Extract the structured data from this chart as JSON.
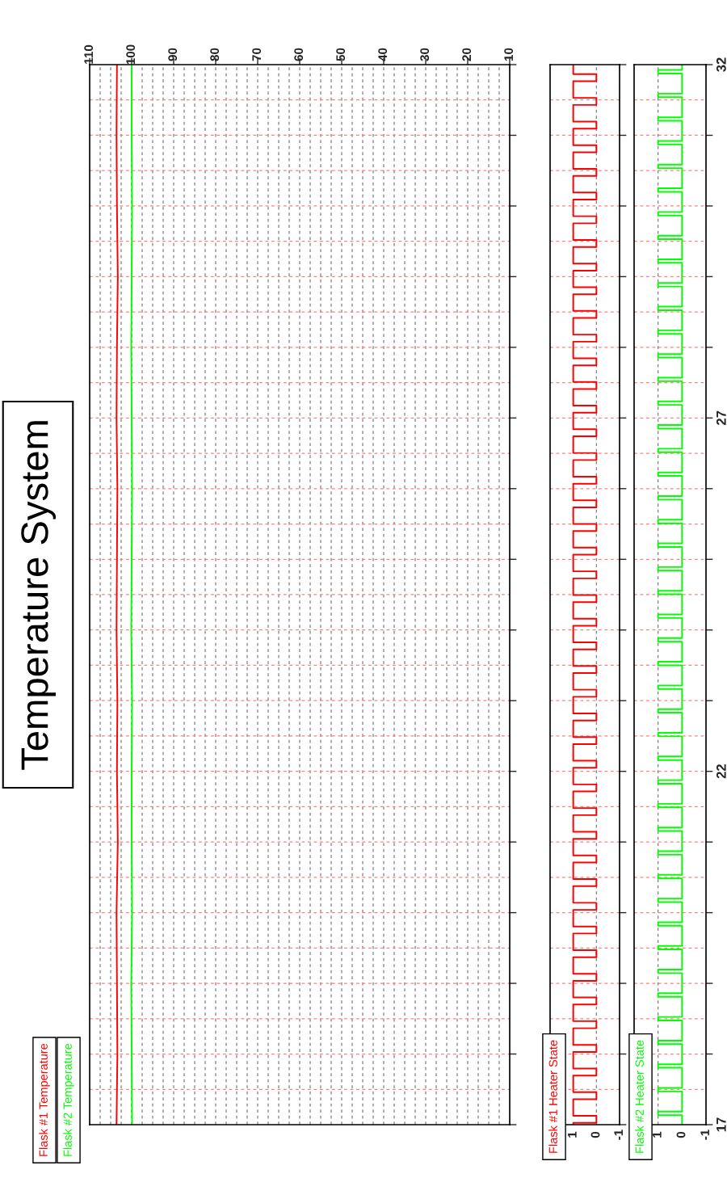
{
  "chart_data": [
    {
      "type": "line",
      "orientation": "horizontal",
      "title": "Temperature System",
      "legend": "bottom left",
      "tick_labels": "x",
      "xlim": [
        110,
        10
      ],
      "xticks": [
        110,
        100,
        90,
        80,
        70,
        60,
        50,
        40,
        30,
        20,
        10
      ],
      "ylim": [
        17,
        32
      ],
      "yticks": [
        17,
        {
          "value": 18,
          "label": null
        },
        {
          "value": 19,
          "label": null
        },
        {
          "value": 20,
          "label": null
        },
        {
          "value": 21,
          "label": null
        },
        22,
        {
          "value": 23,
          "label": null
        },
        {
          "value": 24,
          "label": null
        },
        {
          "value": 25,
          "label": null
        },
        {
          "value": 26,
          "label": null
        },
        27,
        {
          "value": 28,
          "label": null
        },
        {
          "value": 29,
          "label": null
        },
        {
          "value": 30,
          "label": null
        },
        {
          "value": 31,
          "label": null
        },
        32
      ],
      "series": [
        {
          "name": "Flask #1 Temperature",
          "color": "#ff0000",
          "x": [
            17,
            18,
            19,
            20,
            21,
            22,
            23,
            24,
            25,
            26,
            27,
            28,
            29,
            30,
            31,
            32
          ],
          "values": [
            103.6,
            103.4,
            103.5,
            103.6,
            103.3,
            103.5,
            103.4,
            103.6,
            103.5,
            103.4,
            103.6,
            103.5,
            103.3,
            103.5,
            103.6,
            103.5
          ]
        },
        {
          "name": "Flask #2 Temperature",
          "color": "#00ff00",
          "x": [
            17,
            18,
            19,
            20,
            21,
            22,
            23,
            24,
            25,
            26,
            27,
            28,
            29,
            30,
            31,
            32
          ],
          "values": [
            99.9,
            100.0,
            100.1,
            99.9,
            100.0,
            100.0,
            99.9,
            100.1,
            100.0,
            99.9,
            100.0,
            100.1,
            100.0,
            99.9,
            100.0,
            100.0
          ]
        }
      ],
      "ref_lines": [
        {
          "axis": "x",
          "value": 107.5,
          "color": "#808080",
          "line_style": "dashed"
        },
        {
          "axis": "x",
          "value": 105,
          "color": "#808080",
          "line_style": "dashed"
        },
        {
          "axis": "x",
          "value": 102.5,
          "color": "#808080",
          "line_style": "dashed"
        },
        {
          "axis": "x",
          "value": 100,
          "color": "#808080",
          "line_style": "dashed"
        },
        {
          "axis": "x",
          "value": 97.5,
          "color": "#808080",
          "line_style": "dashed"
        },
        {
          "axis": "x",
          "value": 95,
          "color": "#808080",
          "line_style": "dashed"
        },
        {
          "axis": "x",
          "value": 92.5,
          "color": "#808080",
          "line_style": "dashed"
        },
        {
          "axis": "x",
          "value": 90,
          "color": "#808080",
          "line_style": "dashed"
        },
        {
          "axis": "x",
          "value": 87.5,
          "color": "#808080",
          "line_style": "dashed"
        },
        {
          "axis": "x",
          "value": 85,
          "color": "#808080",
          "line_style": "dashed"
        },
        {
          "axis": "x",
          "value": 82.5,
          "color": "#808080",
          "line_style": "dashed"
        },
        {
          "axis": "x",
          "value": 80,
          "color": "#808080",
          "line_style": "dashed"
        },
        {
          "axis": "x",
          "value": 77.5,
          "color": "#808080",
          "line_style": "dashed"
        },
        {
          "axis": "x",
          "value": 75,
          "color": "#808080",
          "line_style": "dashed"
        },
        {
          "axis": "x",
          "value": 72.5,
          "color": "#808080",
          "line_style": "dashed"
        },
        {
          "axis": "x",
          "value": 70,
          "color": "#808080",
          "line_style": "dashed"
        },
        {
          "axis": "x",
          "value": 67.5,
          "color": "#808080",
          "line_style": "dashed"
        },
        {
          "axis": "x",
          "value": 65,
          "color": "#808080",
          "line_style": "dashed"
        },
        {
          "axis": "x",
          "value": 62.5,
          "color": "#808080",
          "line_style": "dashed"
        },
        {
          "axis": "x",
          "value": 60,
          "color": "#808080",
          "line_style": "dashed"
        },
        {
          "axis": "x",
          "value": 57.5,
          "color": "#808080",
          "line_style": "dashed"
        },
        {
          "axis": "x",
          "value": 55,
          "color": "#808080",
          "line_style": "dashed"
        },
        {
          "axis": "x",
          "value": 52.5,
          "color": "#808080",
          "line_style": "dashed"
        },
        {
          "axis": "x",
          "value": 50,
          "color": "#808080",
          "line_style": "dashed"
        },
        {
          "axis": "x",
          "value": 47.5,
          "color": "#808080",
          "line_style": "dashed"
        },
        {
          "axis": "x",
          "value": 45,
          "color": "#808080",
          "line_style": "dashed"
        },
        {
          "axis": "x",
          "value": 42.5,
          "color": "#808080",
          "line_style": "dashed"
        },
        {
          "axis": "x",
          "value": 40,
          "color": "#808080",
          "line_style": "dashed"
        },
        {
          "axis": "x",
          "value": 37.5,
          "color": "#808080",
          "line_style": "dashed"
        },
        {
          "axis": "x",
          "value": 35,
          "color": "#808080",
          "line_style": "dashed"
        },
        {
          "axis": "x",
          "value": 32.5,
          "color": "#808080",
          "line_style": "dashed"
        },
        {
          "axis": "x",
          "value": 30,
          "color": "#808080",
          "line_style": "dashed"
        },
        {
          "axis": "x",
          "value": 27.5,
          "color": "#808080",
          "line_style": "dashed"
        },
        {
          "axis": "x",
          "value": 25,
          "color": "#808080",
          "line_style": "dashed"
        },
        {
          "axis": "x",
          "value": 22.5,
          "color": "#808080",
          "line_style": "dashed"
        },
        {
          "axis": "x",
          "value": 20,
          "color": "#808080",
          "line_style": "dashed"
        },
        {
          "axis": "x",
          "value": 17.5,
          "color": "#808080",
          "line_style": "dashed"
        },
        {
          "axis": "x",
          "value": 15,
          "color": "#808080",
          "line_style": "dashed"
        },
        {
          "axis": "x",
          "value": 12.5,
          "color": "#808080",
          "line_style": "dashed"
        },
        {
          "axis": "y",
          "value": 17.5,
          "color": "#ff7f7f",
          "line_style": "dashed"
        },
        {
          "axis": "y",
          "value": 18,
          "color": "#ff7f7f",
          "line_style": "dashed"
        },
        {
          "axis": "y",
          "value": 18.5,
          "color": "#ff7f7f",
          "line_style": "dashed"
        },
        {
          "axis": "y",
          "value": 19,
          "color": "#ff7f7f",
          "line_style": "dashed"
        },
        {
          "axis": "y",
          "value": 19.5,
          "color": "#ff7f7f",
          "line_style": "dashed"
        },
        {
          "axis": "y",
          "value": 20,
          "color": "#ff7f7f",
          "line_style": "dashed"
        },
        {
          "axis": "y",
          "value": 20.5,
          "color": "#ff7f7f",
          "line_style": "dashed"
        },
        {
          "axis": "y",
          "value": 21,
          "color": "#ff7f7f",
          "line_style": "dashed"
        },
        {
          "axis": "y",
          "value": 21.5,
          "color": "#ff7f7f",
          "line_style": "dashed"
        },
        {
          "axis": "y",
          "value": 22,
          "color": "#ff7f7f",
          "line_style": "dashed"
        },
        {
          "axis": "y",
          "value": 22.5,
          "color": "#ff7f7f",
          "line_style": "dashed"
        },
        {
          "axis": "y",
          "value": 23,
          "color": "#ff7f7f",
          "line_style": "dashed"
        },
        {
          "axis": "y",
          "value": 23.5,
          "color": "#ff7f7f",
          "line_style": "dashed"
        },
        {
          "axis": "y",
          "value": 24,
          "color": "#ff7f7f",
          "line_style": "dashed"
        },
        {
          "axis": "y",
          "value": 24.5,
          "color": "#ff7f7f",
          "line_style": "dashed"
        },
        {
          "axis": "y",
          "value": 25,
          "color": "#ff7f7f",
          "line_style": "dashed"
        },
        {
          "axis": "y",
          "value": 25.5,
          "color": "#ff7f7f",
          "line_style": "dashed"
        },
        {
          "axis": "y",
          "value": 26,
          "color": "#ff7f7f",
          "line_style": "dashed"
        },
        {
          "axis": "y",
          "value": 26.5,
          "color": "#ff7f7f",
          "line_style": "dashed"
        },
        {
          "axis": "y",
          "value": 27,
          "color": "#ff7f7f",
          "line_style": "dashed"
        },
        {
          "axis": "y",
          "value": 27.5,
          "color": "#ff7f7f",
          "line_style": "dashed"
        },
        {
          "axis": "y",
          "value": 28,
          "color": "#ff7f7f",
          "line_style": "dashed"
        },
        {
          "axis": "y",
          "value": 28.5,
          "color": "#ff7f7f",
          "line_style": "dashed"
        },
        {
          "axis": "y",
          "value": 29,
          "color": "#ff7f7f",
          "line_style": "dashed"
        },
        {
          "axis": "y",
          "value": 29.5,
          "color": "#ff7f7f",
          "line_style": "dashed"
        },
        {
          "axis": "y",
          "value": 30,
          "color": "#ff7f7f",
          "line_style": "dashed"
        },
        {
          "axis": "y",
          "value": 30.5,
          "color": "#ff7f7f",
          "line_style": "dashed"
        },
        {
          "axis": "y",
          "value": 31,
          "color": "#ff7f7f",
          "line_style": "dashed"
        },
        {
          "axis": "y",
          "value": 31.5,
          "color": "#ff7f7f",
          "line_style": "dashed"
        }
      ]
    },
    {
      "type": "step",
      "orientation": "horizontal",
      "title": "Flask #1 Heater State",
      "tick_labels": "x",
      "xlim": [
        2,
        -1
      ],
      "xticks": [
        1,
        0,
        -1
      ],
      "ylim": [
        17,
        32
      ],
      "yticks": [
        17,
        {
          "value": 18,
          "label": null
        },
        {
          "value": 19,
          "label": null
        },
        {
          "value": 20,
          "label": null
        },
        {
          "value": 21,
          "label": null
        },
        22,
        {
          "value": 23,
          "label": null
        },
        {
          "value": 24,
          "label": null
        },
        {
          "value": 25,
          "label": null
        },
        {
          "value": 26,
          "label": null
        },
        27,
        {
          "value": 28,
          "label": null
        },
        {
          "value": 29,
          "label": null
        },
        {
          "value": 30,
          "label": null
        },
        {
          "value": 31,
          "label": null
        },
        32
      ],
      "series": [
        {
          "color": "#ff0000",
          "x": [
            17,
            17.025,
            17.125,
            17.36,
            17.46,
            17.695,
            17.795,
            18.03,
            18.13,
            18.365,
            18.465,
            18.7,
            18.8,
            19.035,
            19.135,
            19.37,
            19.47,
            19.705,
            19.805,
            20.04,
            20.14,
            20.375,
            20.475,
            20.71,
            20.81,
            21.045,
            21.145,
            21.38,
            21.48,
            21.715,
            21.815,
            22.05,
            22.15,
            22.385,
            22.485,
            22.72,
            22.82,
            23.055,
            23.155,
            23.39,
            23.49,
            23.725,
            23.825,
            24.06,
            24.16,
            24.395,
            24.495,
            24.73,
            24.83,
            25.065,
            25.165,
            25.4,
            25.5,
            25.735,
            25.835,
            26.07,
            26.17,
            26.405,
            26.505,
            26.74,
            26.84,
            27.075,
            27.175,
            27.41,
            27.51,
            27.745,
            27.845,
            28.08,
            28.18,
            28.415,
            28.515,
            28.75,
            28.85,
            29.085,
            29.185,
            29.42,
            29.52,
            29.755,
            29.855,
            30.09,
            30.19,
            30.425,
            30.525,
            30.76,
            30.86,
            31.095,
            31.195,
            31.43,
            31.53,
            31.765,
            31.865,
            32
          ],
          "values": [
            1,
            0,
            1,
            0,
            1,
            0,
            1,
            0,
            1,
            0,
            1,
            0,
            1,
            0,
            1,
            0,
            1,
            0,
            1,
            0,
            1,
            0,
            1,
            0,
            1,
            0,
            1,
            0,
            1,
            0,
            1,
            0,
            1,
            0,
            1,
            0,
            1,
            0,
            1,
            0,
            1,
            0,
            1,
            0,
            1,
            0,
            1,
            0,
            1,
            0,
            1,
            0,
            1,
            0,
            1,
            0,
            1,
            0,
            1,
            0,
            1,
            0,
            1,
            0,
            1,
            0,
            1,
            0,
            1,
            0,
            1,
            0,
            1,
            0,
            1,
            0,
            1,
            0,
            1,
            0,
            1,
            0,
            1,
            0,
            1,
            0,
            1,
            0,
            1,
            0,
            1,
            1
          ]
        }
      ],
      "ref_lines": [
        {
          "axis": "x",
          "value": 0,
          "color": "#808080",
          "line_style": "dashed"
        },
        {
          "axis": "y",
          "value": 17.5,
          "color": "#ff7f7f",
          "line_style": "dashed"
        },
        {
          "axis": "y",
          "value": 18,
          "color": "#ff7f7f",
          "line_style": "dashed"
        },
        {
          "axis": "y",
          "value": 18.5,
          "color": "#ff7f7f",
          "line_style": "dashed"
        },
        {
          "axis": "y",
          "value": 19,
          "color": "#ff7f7f",
          "line_style": "dashed"
        },
        {
          "axis": "y",
          "value": 19.5,
          "color": "#ff7f7f",
          "line_style": "dashed"
        },
        {
          "axis": "y",
          "value": 20,
          "color": "#ff7f7f",
          "line_style": "dashed"
        },
        {
          "axis": "y",
          "value": 20.5,
          "color": "#ff7f7f",
          "line_style": "dashed"
        },
        {
          "axis": "y",
          "value": 21,
          "color": "#ff7f7f",
          "line_style": "dashed"
        },
        {
          "axis": "y",
          "value": 21.5,
          "color": "#ff7f7f",
          "line_style": "dashed"
        },
        {
          "axis": "y",
          "value": 22,
          "color": "#ff7f7f",
          "line_style": "dashed"
        },
        {
          "axis": "y",
          "value": 22.5,
          "color": "#ff7f7f",
          "line_style": "dashed"
        },
        {
          "axis": "y",
          "value": 23,
          "color": "#ff7f7f",
          "line_style": "dashed"
        },
        {
          "axis": "y",
          "value": 23.5,
          "color": "#ff7f7f",
          "line_style": "dashed"
        },
        {
          "axis": "y",
          "value": 24,
          "color": "#ff7f7f",
          "line_style": "dashed"
        },
        {
          "axis": "y",
          "value": 24.5,
          "color": "#ff7f7f",
          "line_style": "dashed"
        },
        {
          "axis": "y",
          "value": 25,
          "color": "#ff7f7f",
          "line_style": "dashed"
        },
        {
          "axis": "y",
          "value": 25.5,
          "color": "#ff7f7f",
          "line_style": "dashed"
        },
        {
          "axis": "y",
          "value": 26,
          "color": "#ff7f7f",
          "line_style": "dashed"
        },
        {
          "axis": "y",
          "value": 26.5,
          "color": "#ff7f7f",
          "line_style": "dashed"
        },
        {
          "axis": "y",
          "value": 27,
          "color": "#ff7f7f",
          "line_style": "dashed"
        },
        {
          "axis": "y",
          "value": 27.5,
          "color": "#ff7f7f",
          "line_style": "dashed"
        },
        {
          "axis": "y",
          "value": 28,
          "color": "#ff7f7f",
          "line_style": "dashed"
        },
        {
          "axis": "y",
          "value": 28.5,
          "color": "#ff7f7f",
          "line_style": "dashed"
        },
        {
          "axis": "y",
          "value": 29,
          "color": "#ff7f7f",
          "line_style": "dashed"
        },
        {
          "axis": "y",
          "value": 29.5,
          "color": "#ff7f7f",
          "line_style": "dashed"
        },
        {
          "axis": "y",
          "value": 30,
          "color": "#ff7f7f",
          "line_style": "dashed"
        },
        {
          "axis": "y",
          "value": 30.5,
          "color": "#ff7f7f",
          "line_style": "dashed"
        },
        {
          "axis": "y",
          "value": 31,
          "color": "#ff7f7f",
          "line_style": "dashed"
        },
        {
          "axis": "y",
          "value": 31.5,
          "color": "#ff7f7f",
          "line_style": "dashed"
        }
      ]
    },
    {
      "type": "step",
      "orientation": "horizontal",
      "title": "Flask #2 Heater State",
      "xlim": [
        2,
        -1
      ],
      "xticks": [
        1,
        0,
        -1
      ],
      "ylim": [
        17,
        32
      ],
      "yticks": [
        17,
        {
          "value": 18,
          "label": null
        },
        {
          "value": 19,
          "label": null
        },
        {
          "value": 20,
          "label": null
        },
        {
          "value": 21,
          "label": null
        },
        22,
        {
          "value": 23,
          "label": null
        },
        {
          "value": 24,
          "label": null
        },
        {
          "value": 25,
          "label": null
        },
        {
          "value": 26,
          "label": null
        },
        27,
        {
          "value": 28,
          "label": null
        },
        {
          "value": 29,
          "label": null
        },
        {
          "value": 30,
          "label": null
        },
        {
          "value": 31,
          "label": null
        },
        32
      ],
      "series": [
        {
          "color": "#00ff00",
          "x": [
            17,
            17.135,
            17.185,
            17.47,
            17.52,
            17.805,
            17.855,
            18.14,
            18.19,
            18.475,
            18.525,
            18.81,
            18.86,
            19.145,
            19.195,
            19.48,
            19.53,
            19.815,
            19.865,
            20.15,
            20.2,
            20.485,
            20.535,
            20.82,
            20.87,
            21.155,
            21.205,
            21.49,
            21.54,
            21.825,
            21.875,
            22.16,
            22.21,
            22.495,
            22.545,
            22.83,
            22.88,
            23.165,
            23.215,
            23.5,
            23.55,
            23.835,
            23.885,
            24.17,
            24.22,
            24.505,
            24.555,
            24.84,
            24.89,
            25.175,
            25.225,
            25.51,
            25.56,
            25.845,
            25.895,
            26.18,
            26.23,
            26.515,
            26.565,
            26.85,
            26.9,
            27.185,
            27.235,
            27.52,
            27.57,
            27.855,
            27.905,
            28.19,
            28.24,
            28.525,
            28.575,
            28.86,
            28.91,
            29.195,
            29.245,
            29.53,
            29.58,
            29.865,
            29.915,
            30.2,
            30.25,
            30.535,
            30.585,
            30.87,
            30.92,
            31.205,
            31.255,
            31.54,
            31.59,
            31.875,
            31.925,
            32
          ],
          "values": [
            0,
            1,
            0,
            1,
            0,
            1,
            0,
            1,
            0,
            1,
            0,
            1,
            0,
            1,
            0,
            1,
            0,
            1,
            0,
            1,
            0,
            1,
            0,
            1,
            0,
            1,
            0,
            1,
            0,
            1,
            0,
            1,
            0,
            1,
            0,
            1,
            0,
            1,
            0,
            1,
            0,
            1,
            0,
            1,
            0,
            1,
            0,
            1,
            0,
            1,
            0,
            1,
            0,
            1,
            0,
            1,
            0,
            1,
            0,
            1,
            0,
            1,
            0,
            1,
            0,
            1,
            0,
            1,
            0,
            1,
            0,
            1,
            0,
            1,
            0,
            1,
            0,
            1,
            0,
            1,
            0,
            1,
            0,
            1,
            0,
            1,
            0,
            1,
            0,
            1,
            0,
            0
          ]
        }
      ],
      "ref_lines": [
        {
          "axis": "x",
          "value": 1,
          "color": "#808080",
          "line_style": "dashed"
        },
        {
          "axis": "y",
          "value": 17.5,
          "color": "#ff7f7f",
          "line_style": "dashed"
        },
        {
          "axis": "y",
          "value": 18,
          "color": "#ff7f7f",
          "line_style": "dashed"
        },
        {
          "axis": "y",
          "value": 18.5,
          "color": "#ff7f7f",
          "line_style": "dashed"
        },
        {
          "axis": "y",
          "value": 19,
          "color": "#ff7f7f",
          "line_style": "dashed"
        },
        {
          "axis": "y",
          "value": 19.5,
          "color": "#ff7f7f",
          "line_style": "dashed"
        },
        {
          "axis": "y",
          "value": 20,
          "color": "#ff7f7f",
          "line_style": "dashed"
        },
        {
          "axis": "y",
          "value": 20.5,
          "color": "#ff7f7f",
          "line_style": "dashed"
        },
        {
          "axis": "y",
          "value": 21,
          "color": "#ff7f7f",
          "line_style": "dashed"
        },
        {
          "axis": "y",
          "value": 21.5,
          "color": "#ff7f7f",
          "line_style": "dashed"
        },
        {
          "axis": "y",
          "value": 22,
          "color": "#ff7f7f",
          "line_style": "dashed"
        },
        {
          "axis": "y",
          "value": 22.5,
          "color": "#ff7f7f",
          "line_style": "dashed"
        },
        {
          "axis": "y",
          "value": 23,
          "color": "#ff7f7f",
          "line_style": "dashed"
        },
        {
          "axis": "y",
          "value": 23.5,
          "color": "#ff7f7f",
          "line_style": "dashed"
        },
        {
          "axis": "y",
          "value": 24,
          "color": "#ff7f7f",
          "line_style": "dashed"
        },
        {
          "axis": "y",
          "value": 24.5,
          "color": "#ff7f7f",
          "line_style": "dashed"
        },
        {
          "axis": "y",
          "value": 25,
          "color": "#ff7f7f",
          "line_style": "dashed"
        },
        {
          "axis": "y",
          "value": 25.5,
          "color": "#ff7f7f",
          "line_style": "dashed"
        },
        {
          "axis": "y",
          "value": 26,
          "color": "#ff7f7f",
          "line_style": "dashed"
        },
        {
          "axis": "y",
          "value": 26.5,
          "color": "#ff7f7f",
          "line_style": "dashed"
        },
        {
          "axis": "y",
          "value": 27,
          "color": "#ff7f7f",
          "line_style": "dashed"
        },
        {
          "axis": "y",
          "value": 27.5,
          "color": "#ff7f7f",
          "line_style": "dashed"
        },
        {
          "axis": "y",
          "value": 28,
          "color": "#ff7f7f",
          "line_style": "dashed"
        },
        {
          "axis": "y",
          "value": 28.5,
          "color": "#ff7f7f",
          "line_style": "dashed"
        },
        {
          "axis": "y",
          "value": 29,
          "color": "#ff7f7f",
          "line_style": "dashed"
        },
        {
          "axis": "y",
          "value": 29.5,
          "color": "#ff7f7f",
          "line_style": "dashed"
        },
        {
          "axis": "y",
          "value": 30,
          "color": "#ff7f7f",
          "line_style": "dashed"
        },
        {
          "axis": "y",
          "value": 30.5,
          "color": "#ff7f7f",
          "line_style": "dashed"
        },
        {
          "axis": "y",
          "value": 31,
          "color": "#ff7f7f",
          "line_style": "dashed"
        },
        {
          "axis": "y",
          "value": 31.5,
          "color": "#ff7f7f",
          "line_style": "dashed"
        }
      ]
    }
  ]
}
